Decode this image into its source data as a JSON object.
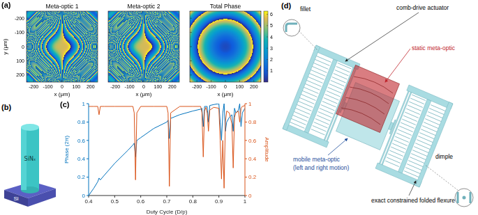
{
  "panels": {
    "a": {
      "label": "(a)",
      "maps": [
        {
          "title": "Meta-optic 1"
        },
        {
          "title": "Meta-optic 2"
        },
        {
          "title": "Total Phase"
        }
      ],
      "xlabel": "x (μm)",
      "ylabel": "y (μm)",
      "xlim": [
        -250,
        250
      ],
      "ylim": [
        -250,
        250
      ],
      "xticks": [
        -200,
        -100,
        0,
        100,
        200
      ],
      "yticks": [
        -200,
        -100,
        0,
        100,
        200
      ],
      "colorbar": {
        "range": [
          0,
          6.28
        ],
        "ticks": [
          1,
          2,
          3,
          4,
          5,
          6
        ]
      }
    },
    "b": {
      "label": "(b)",
      "pillar": "SiNₓ",
      "substrate": "Si"
    },
    "d": {
      "label": "(d)",
      "annotations": {
        "actuator": "comb-drive actuator",
        "fillet": "fillet",
        "static": {
          "text": "static meta-optic",
          "color": "#c0262d"
        },
        "mobile": {
          "text": "mobile meta-optic",
          "subtext": "(left and right motion)",
          "color": "#1f4f9c"
        },
        "flexure": "exact constrained folded flexure",
        "dimple": "dimple"
      }
    }
  },
  "chart_data": {
    "type": "line",
    "label": "(c)",
    "xlabel": "Duty Cycle (D/p)",
    "ylabel": "Phase (2π)",
    "y2label": "Amplitude",
    "xlim": [
      0.4,
      1
    ],
    "xticks": [
      0.4,
      0.5,
      0.6,
      0.7,
      0.8,
      0.9,
      1
    ],
    "ylim": [
      0,
      1
    ],
    "yticks": [
      0,
      0.2,
      0.4,
      0.6,
      0.8,
      1
    ],
    "y2lim": [
      0,
      1
    ],
    "y2ticks": [
      0,
      0.2,
      0.4,
      0.6,
      0.8,
      1
    ],
    "x": [
      0.4,
      0.42,
      0.435,
      0.44,
      0.445,
      0.46,
      0.5,
      0.55,
      0.57,
      0.575,
      0.58,
      0.585,
      0.6,
      0.65,
      0.7,
      0.705,
      0.71,
      0.715,
      0.75,
      0.8,
      0.83,
      0.835,
      0.84,
      0.845,
      0.85,
      0.855,
      0.86,
      0.865,
      0.88,
      0.9,
      0.905,
      0.91,
      0.915,
      0.92,
      0.925,
      0.93,
      0.94,
      0.95,
      0.955,
      0.96,
      0.965,
      0.975,
      0.98,
      0.985,
      0.99,
      1.0
    ],
    "series": [
      {
        "name": "Phase",
        "color": "#0072bd",
        "axis": "y",
        "values": [
          0.0,
          0.08,
          0.15,
          0.19,
          0.17,
          0.22,
          0.35,
          0.49,
          0.55,
          0.57,
          0.42,
          0.6,
          0.63,
          0.73,
          0.8,
          0.82,
          0.62,
          0.84,
          0.88,
          0.92,
          0.94,
          0.95,
          0.75,
          0.97,
          0.97,
          0.97,
          0.8,
          0.98,
          0.99,
          1.0,
          0.8,
          0.6,
          0.9,
          1.0,
          0.7,
          0.8,
          0.85,
          0.88,
          0.7,
          0.95,
          0.9,
          0.93,
          1.0,
          0.75,
          0.9,
          0.95
        ]
      },
      {
        "name": "Amplitude",
        "color": "#d95319",
        "axis": "y2",
        "values": [
          0.97,
          0.97,
          0.97,
          0.88,
          0.97,
          0.97,
          0.97,
          0.97,
          0.97,
          0.9,
          0.17,
          0.9,
          0.97,
          0.97,
          0.97,
          0.9,
          0.1,
          0.9,
          0.97,
          0.97,
          0.97,
          0.9,
          0.42,
          0.92,
          0.96,
          0.9,
          0.7,
          0.93,
          0.96,
          0.95,
          0.6,
          0.18,
          0.6,
          0.08,
          0.8,
          0.92,
          0.9,
          0.78,
          0.3,
          0.85,
          0.9,
          0.92,
          0.8,
          0.95,
          0.97,
          0.98
        ]
      }
    ]
  }
}
